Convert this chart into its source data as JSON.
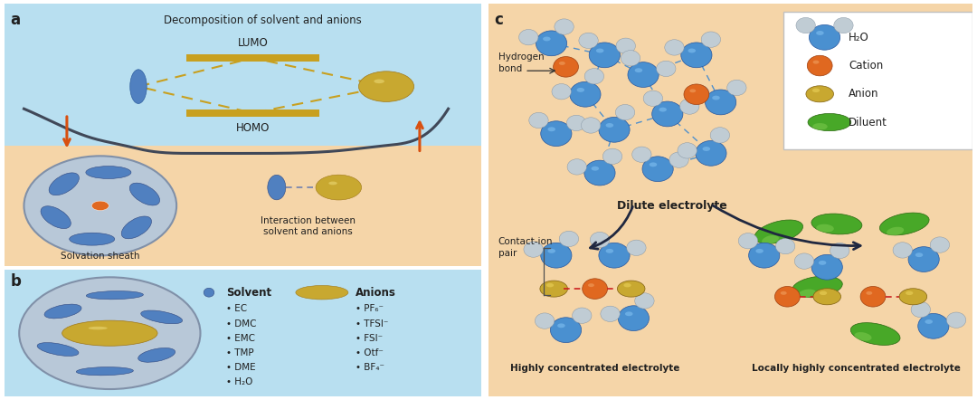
{
  "bg_blue": "#b8dff0",
  "bg_orange": "#f5d5a8",
  "bg_white": "#ffffff",
  "color_solvent_blue": "#5080c0",
  "color_anion_yellow": "#c8a830",
  "color_cation_orange": "#e06820",
  "color_diluent_green": "#48a828",
  "color_water_blue": "#4a88cc",
  "color_water_grey": "#b8c4cc",
  "color_arrow_dark": "#253050",
  "color_arrow_orange": "#d85010",
  "color_dashed_blue": "#5090cc",
  "color_dashed_red": "#cc2020",
  "color_label_dark": "#202020",
  "color_homo_lumo": "#c8a020",
  "color_solvation_fill": "#b8c8d8",
  "color_solvation_edge": "#8090a8",
  "color_sep_line": "#404858",
  "title_a": "Decomposition of solvent and anions",
  "label_lumo": "LUMO",
  "label_homo": "HOMO",
  "label_solvation": "Solvation sheath",
  "label_interaction": "Interaction between\nsolvent and anions",
  "label_solvent_bold": "Solvent",
  "label_anions_bold": "Anions",
  "solvent_list": [
    "EC",
    "DMC",
    "EMC",
    "TMP",
    "DME",
    "H₂O"
  ],
  "anion_list": [
    "PF₆⁻",
    "TFSI⁻",
    "FSI⁻",
    "Otf⁻",
    "BF₄⁻"
  ],
  "label_dilute": "Dilute electrolyte",
  "label_hce": "Highly concentrated electrolyte",
  "label_lhce": "Locally highly concentrated electrolyte",
  "label_h2o": "H₂O",
  "label_cation": "Cation",
  "label_anion_leg": "Anion",
  "label_diluent": "Diluent",
  "label_hbond": "Hydrogen\nbond",
  "label_contact": "Contact-ion\npair"
}
